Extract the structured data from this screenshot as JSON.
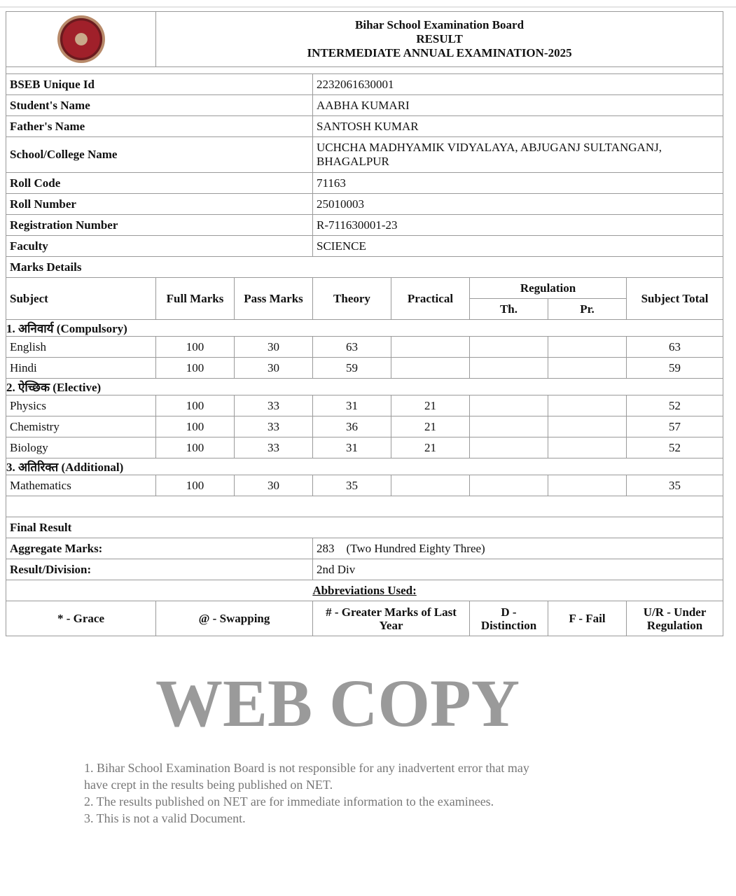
{
  "header": {
    "board": "Bihar School Examination Board",
    "result": "RESULT",
    "exam": "INTERMEDIATE ANNUAL EXAMINATION-2025",
    "logo": "bseb-seal-logo"
  },
  "student": [
    {
      "label": "BSEB Unique Id",
      "value": "2232061630001"
    },
    {
      "label": "Student's Name",
      "value": "AABHA KUMARI"
    },
    {
      "label": "Father's Name",
      "value": "SANTOSH KUMAR"
    },
    {
      "label": "School/College Name",
      "value": "UCHCHA MADHYAMIK VIDYALAYA, ABJUGANJ SULTANGANJ, BHAGALPUR"
    },
    {
      "label": "Roll Code",
      "value": "71163"
    },
    {
      "label": "Roll Number",
      "value": "25010003"
    },
    {
      "label": "Registration Number",
      "value": "R-711630001-23"
    },
    {
      "label": "Faculty",
      "value": "SCIENCE"
    }
  ],
  "marks_details_label": "Marks Details",
  "columns": {
    "subject": "Subject",
    "full": "Full Marks",
    "pass": "Pass Marks",
    "theory": "Theory",
    "practical": "Practical",
    "regulation": "Regulation",
    "th": "Th.",
    "pr": "Pr.",
    "total": "Subject Total"
  },
  "sections": [
    {
      "title": "1. अनिवार्य (Compulsory)",
      "rows": [
        {
          "subject": "English",
          "full": "100",
          "pass": "30",
          "theory": "63",
          "practical": "",
          "th": "",
          "pr": "",
          "total": "63"
        },
        {
          "subject": "Hindi",
          "full": "100",
          "pass": "30",
          "theory": "59",
          "practical": "",
          "th": "",
          "pr": "",
          "total": "59"
        }
      ]
    },
    {
      "title": "2. ऐच्छिक (Elective)",
      "rows": [
        {
          "subject": "Physics",
          "full": "100",
          "pass": "33",
          "theory": "31",
          "practical": "21",
          "th": "",
          "pr": "",
          "total": "52"
        },
        {
          "subject": "Chemistry",
          "full": "100",
          "pass": "33",
          "theory": "36",
          "practical": "21",
          "th": "",
          "pr": "",
          "total": "57"
        },
        {
          "subject": "Biology",
          "full": "100",
          "pass": "33",
          "theory": "31",
          "practical": "21",
          "th": "",
          "pr": "",
          "total": "52"
        }
      ]
    },
    {
      "title": "3. अतिरिक्त (Additional)",
      "rows": [
        {
          "subject": "Mathematics",
          "full": "100",
          "pass": "30",
          "theory": "35",
          "practical": "",
          "th": "",
          "pr": "",
          "total": "35"
        }
      ]
    }
  ],
  "final": {
    "title": "Final Result",
    "aggregate_label": "Aggregate Marks:",
    "aggregate_value": "283    (Two Hundred Eighty Three)",
    "division_label": "Result/Division:",
    "division_value": "2nd Div"
  },
  "abbreviations": {
    "title": "Abbreviations Used:",
    "items": [
      "* - Grace",
      "@ - Swapping",
      "# - Greater Marks of Last Year",
      "D - Distinction",
      "F - Fail",
      "U/R - Under Regulation"
    ]
  },
  "watermark": {
    "big": "WEB COPY",
    "notes": [
      "1. Bihar School Examination Board is not responsible for any inadvertent error that may",
      "have crept in the results being published on NET.",
      "2. The results published on NET are for immediate information to the examinees.",
      "3. This is not a valid Document."
    ]
  }
}
